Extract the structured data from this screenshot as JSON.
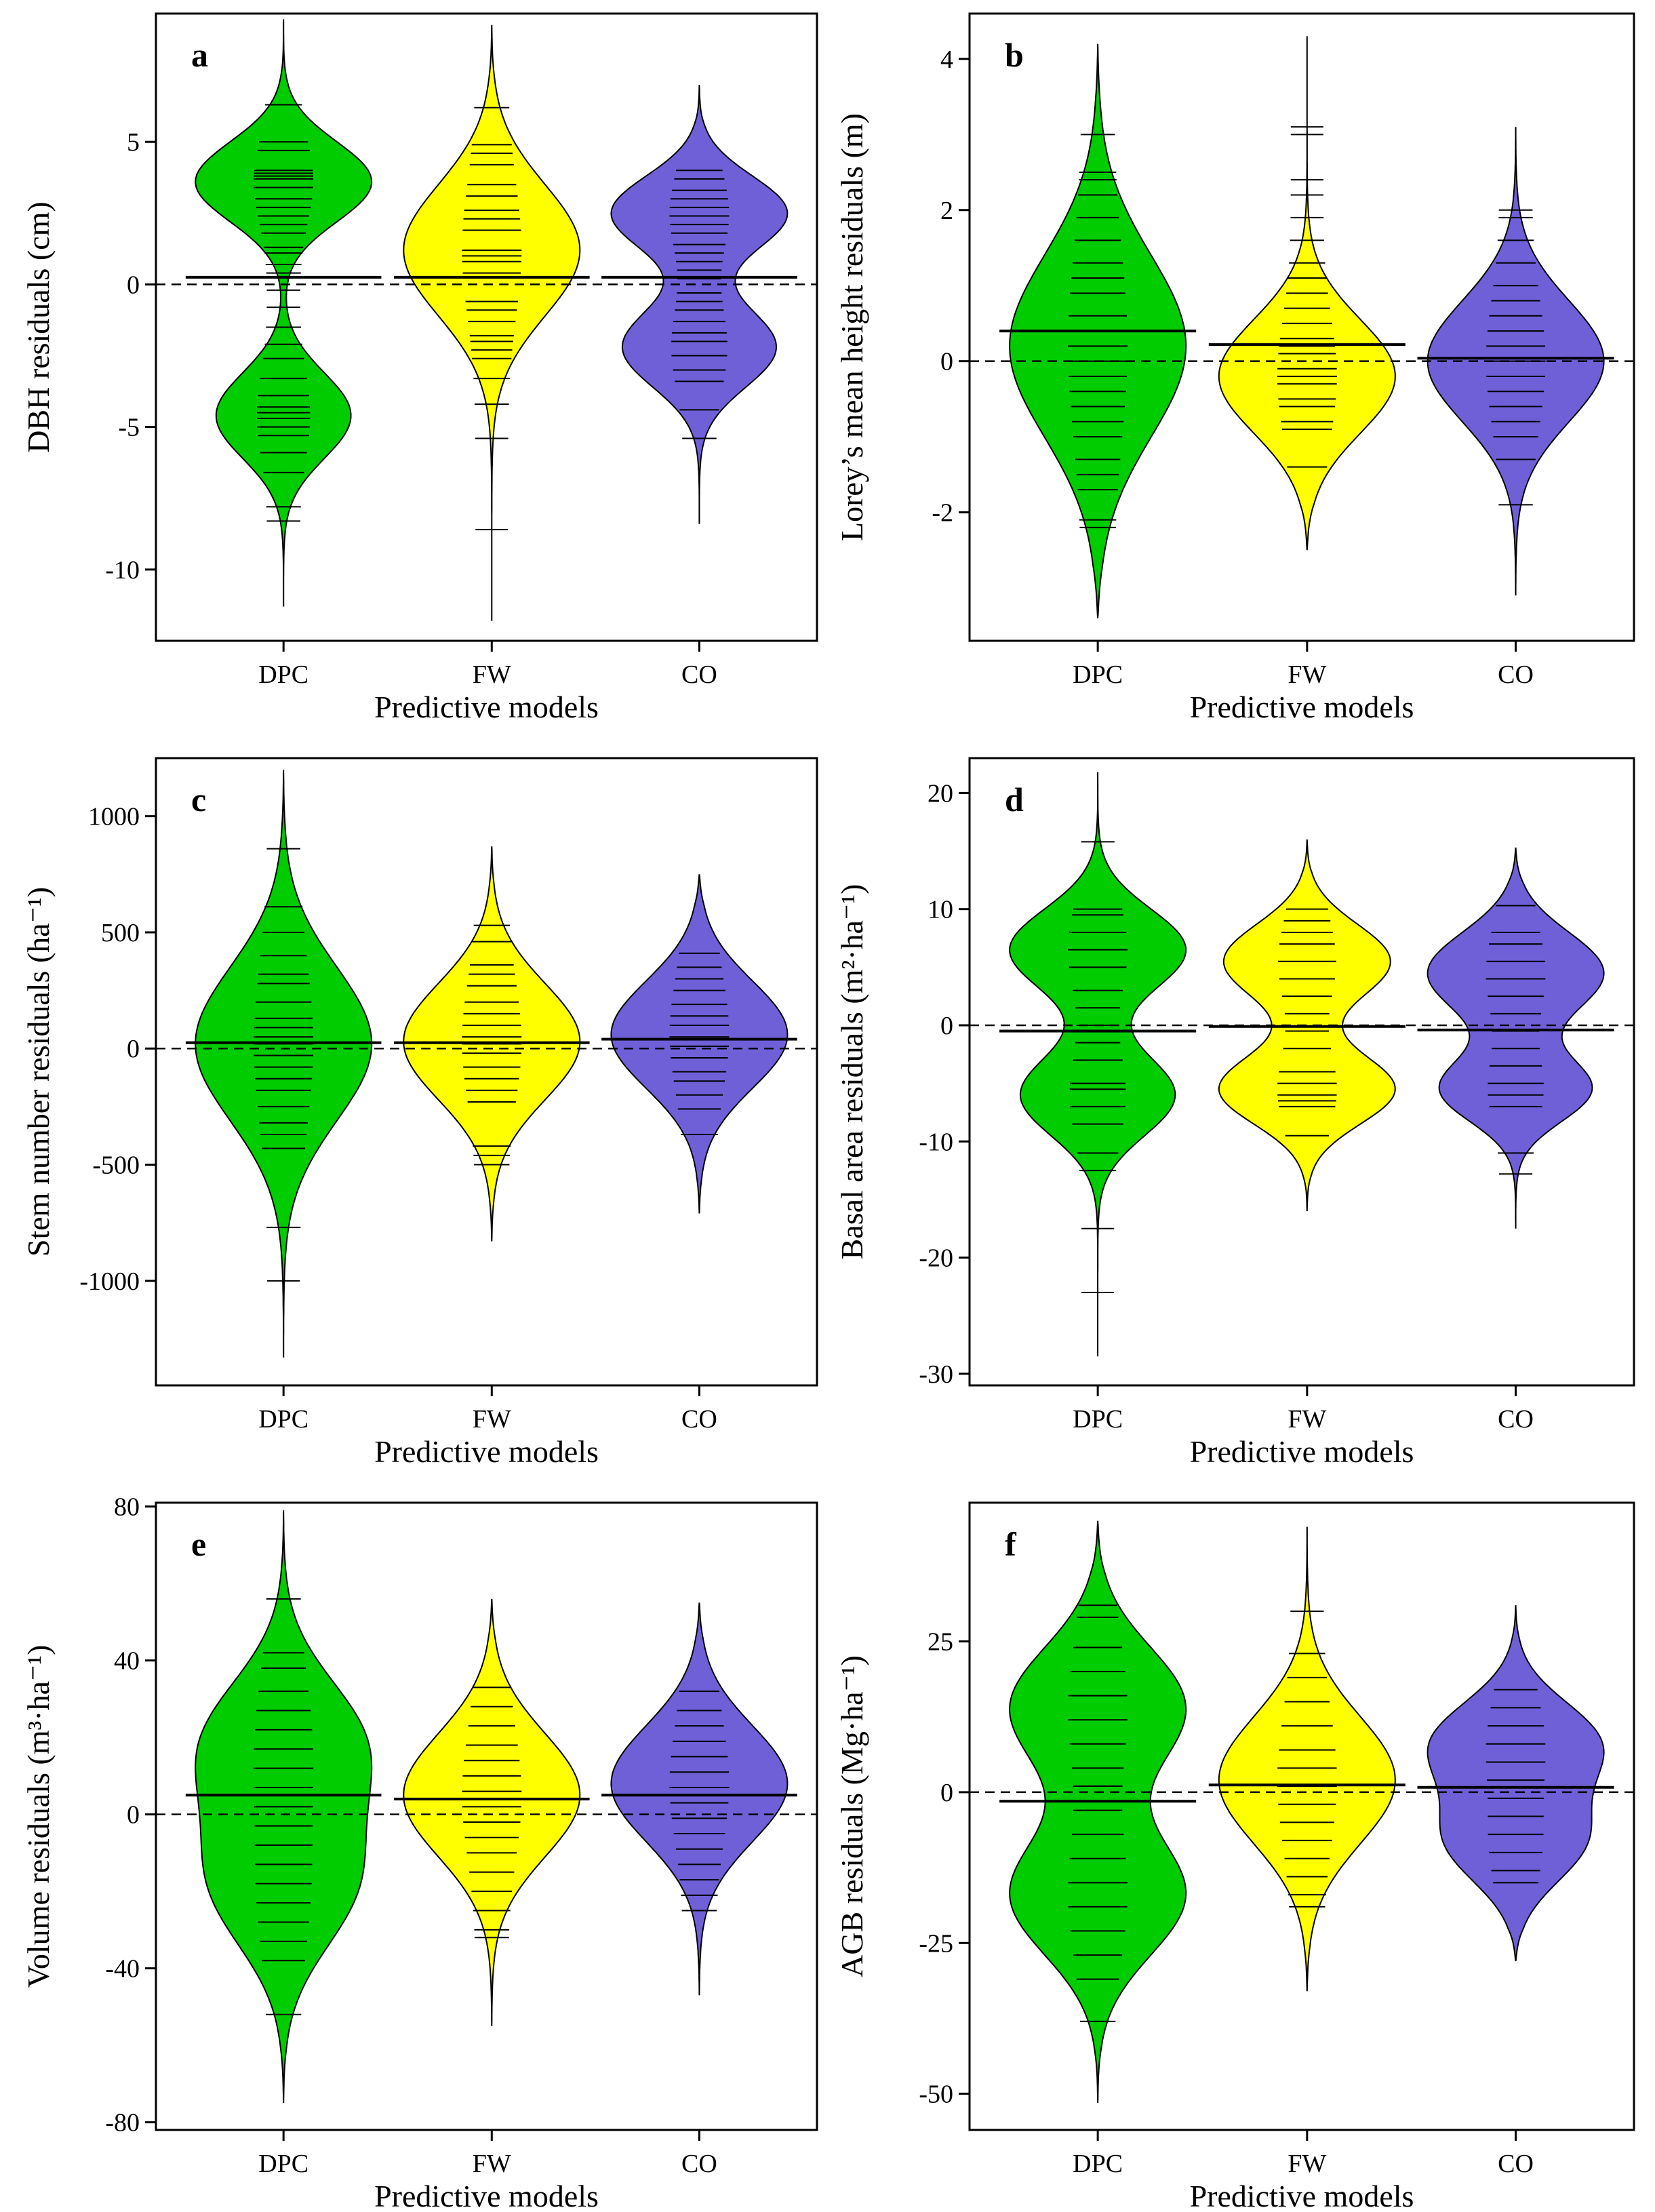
{
  "figure": {
    "x_axis_title": "Predictive models",
    "categories": [
      "DPC",
      "FW",
      "CO"
    ],
    "colors": {
      "DPC": "#00cc00",
      "FW": "#ffff00",
      "CO": "#7060d8"
    }
  },
  "chart_data": [
    {
      "type": "violin",
      "panel": "a",
      "xlabel": "Predictive models",
      "ylabel": "DBH residuals (cm)",
      "categories": [
        "DPC",
        "FW",
        "CO"
      ],
      "yticks": [
        5,
        0,
        -5,
        -10
      ],
      "ylim": [
        -12.5,
        9.5
      ],
      "reference_line": 0,
      "means": [
        0.25,
        0.25,
        0.25
      ],
      "violins": [
        {
          "name": "DPC",
          "min": -11.3,
          "max": 9.3,
          "modes": [
            {
              "c": 3.6,
              "s": 1.4,
              "w": 0.85
            },
            {
              "c": -4.6,
              "s": 1.5,
              "w": 0.65
            }
          ]
        },
        {
          "name": "FW",
          "min": -11.8,
          "max": 9.1,
          "modes": [
            {
              "c": 1.2,
              "s": 2.3,
              "w": 1.0
            }
          ]
        },
        {
          "name": "CO",
          "min": -8.4,
          "max": 7.0,
          "modes": [
            {
              "c": 2.5,
              "s": 1.3,
              "w": 0.8
            },
            {
              "c": -2.2,
              "s": 1.4,
              "w": 0.7
            }
          ]
        }
      ],
      "points": [
        [
          6.3,
          5.0,
          4.7,
          4.0,
          3.9,
          3.8,
          3.7,
          3.4,
          3.0,
          2.7,
          2.4,
          2.1,
          1.8,
          1.3,
          1.1,
          0.7,
          0.4,
          -0.2,
          -0.8,
          -1.5,
          -2.1,
          -2.6,
          -3.3,
          -3.9,
          -4.3,
          -4.5,
          -4.7,
          -5.0,
          -5.3,
          -5.9,
          -6.6,
          -7.8,
          -8.3
        ],
        [
          6.2,
          4.9,
          4.6,
          4.2,
          3.5,
          3.1,
          2.6,
          2.3,
          1.9,
          1.2,
          1.0,
          0.8,
          0.4,
          -0.6,
          -0.9,
          -1.3,
          -1.8,
          -2.0,
          -2.3,
          -2.6,
          -3.3,
          -4.2,
          -5.4,
          -8.6
        ],
        [
          4.0,
          3.7,
          3.3,
          3.0,
          2.7,
          2.4,
          2.1,
          1.8,
          1.4,
          1.1,
          0.8,
          0.5,
          0.2,
          -0.3,
          -0.6,
          -0.9,
          -1.3,
          -1.7,
          -2.0,
          -2.5,
          -3.0,
          -3.4,
          -4.4,
          -5.4
        ]
      ]
    },
    {
      "type": "violin",
      "panel": "b",
      "xlabel": "Predictive models",
      "ylabel": "Lorey’s mean height residuals (m)",
      "categories": [
        "DPC",
        "FW",
        "CO"
      ],
      "yticks": [
        4,
        2,
        0,
        -2
      ],
      "ylim": [
        -3.7,
        4.6
      ],
      "reference_line": 0,
      "means": [
        0.4,
        0.22,
        0.04
      ],
      "violins": [
        {
          "name": "DPC",
          "min": -3.4,
          "max": 4.2,
          "modes": [
            {
              "c": 0.2,
              "s": 1.2,
              "w": 0.85
            }
          ]
        },
        {
          "name": "FW",
          "min": -2.5,
          "max": 4.3,
          "modes": [
            {
              "c": -0.2,
              "s": 0.75,
              "w": 1.0
            }
          ]
        },
        {
          "name": "CO",
          "min": -3.1,
          "max": 3.1,
          "modes": [
            {
              "c": 0.0,
              "s": 0.8,
              "w": 0.88
            }
          ]
        }
      ],
      "points": [
        [
          3.0,
          2.5,
          2.4,
          2.2,
          1.9,
          1.6,
          1.3,
          1.1,
          0.9,
          0.6,
          0.4,
          0.2,
          0.0,
          -0.2,
          -0.4,
          -0.6,
          -0.8,
          -1.0,
          -1.3,
          -1.5,
          -1.7,
          -2.1,
          -2.2
        ],
        [
          3.1,
          3.0,
          2.4,
          2.2,
          1.9,
          1.6,
          1.3,
          1.1,
          0.9,
          0.7,
          0.5,
          0.3,
          0.2,
          0.1,
          -0.1,
          -0.2,
          -0.3,
          -0.5,
          -0.6,
          -0.8,
          -0.9,
          -1.4
        ],
        [
          2.0,
          1.9,
          1.6,
          1.3,
          1.0,
          0.8,
          0.6,
          0.4,
          0.2,
          0.0,
          -0.2,
          -0.4,
          -0.6,
          -0.8,
          -1.0,
          -1.3,
          -1.9
        ]
      ]
    },
    {
      "type": "violin",
      "panel": "c",
      "xlabel": "Predictive models",
      "ylabel": "Stem number residuals (ha⁻¹)",
      "categories": [
        "DPC",
        "FW",
        "CO"
      ],
      "yticks": [
        1000,
        500,
        0,
        -500,
        -1000
      ],
      "ylim": [
        -1450,
        1250
      ],
      "reference_line": 0,
      "means": [
        25,
        25,
        40
      ],
      "violins": [
        {
          "name": "DPC",
          "min": -1330,
          "max": 1200,
          "modes": [
            {
              "c": 20,
              "s": 330,
              "w": 0.8
            }
          ]
        },
        {
          "name": "FW",
          "min": -830,
          "max": 870,
          "modes": [
            {
              "c": 30,
              "s": 250,
              "w": 1.0
            }
          ]
        },
        {
          "name": "CO",
          "min": -710,
          "max": 750,
          "modes": [
            {
              "c": 60,
              "s": 230,
              "w": 1.0
            }
          ]
        }
      ],
      "points": [
        [
          860,
          610,
          500,
          400,
          320,
          280,
          200,
          130,
          90,
          50,
          20,
          -30,
          -80,
          -130,
          -180,
          -250,
          -320,
          -370,
          -430,
          -770,
          -1000
        ],
        [
          530,
          460,
          360,
          320,
          270,
          200,
          150,
          100,
          50,
          20,
          -20,
          -80,
          -130,
          -180,
          -230,
          -420,
          -460,
          -500
        ],
        [
          410,
          350,
          300,
          250,
          190,
          140,
          100,
          50,
          10,
          -40,
          -100,
          -140,
          -200,
          -260,
          -370
        ]
      ]
    },
    {
      "type": "violin",
      "panel": "d",
      "xlabel": "Predictive models",
      "ylabel": "Basal area residuals (m²·ha⁻¹)",
      "categories": [
        "DPC",
        "FW",
        "CO"
      ],
      "yticks": [
        20,
        10,
        0,
        -10,
        -20,
        -30
      ],
      "ylim": [
        -31,
        23
      ],
      "reference_line": 0,
      "means": [
        -0.5,
        -0.1,
        -0.4
      ],
      "violins": [
        {
          "name": "DPC",
          "min": -28.5,
          "max": 21.8,
          "modes": [
            {
              "c": 6.5,
              "s": 3.5,
              "w": 0.82
            },
            {
              "c": -6.0,
              "s": 3.5,
              "w": 0.72
            }
          ]
        },
        {
          "name": "FW",
          "min": -16.0,
          "max": 16.0,
          "modes": [
            {
              "c": 5.5,
              "s": 3.2,
              "w": 0.9
            },
            {
              "c": -5.5,
              "s": 3.0,
              "w": 0.95
            }
          ]
        },
        {
          "name": "CO",
          "min": -17.5,
          "max": 15.3,
          "modes": [
            {
              "c": 4.5,
              "s": 3.5,
              "w": 0.88
            },
            {
              "c": -5.5,
              "s": 2.8,
              "w": 0.75
            }
          ]
        }
      ],
      "points": [
        [
          15.8,
          10.0,
          9.5,
          8.0,
          6.5,
          5.0,
          3.0,
          1.5,
          0.0,
          -1.5,
          -3.0,
          -5.0,
          -5.5,
          -7.0,
          -8.5,
          -11.0,
          -12.5,
          -17.5,
          -23.0
        ],
        [
          10.0,
          9.0,
          8.0,
          7.0,
          5.5,
          4.0,
          2.5,
          1.0,
          -0.5,
          -2.0,
          -4.0,
          -5.0,
          -6.0,
          -6.5,
          -7.0,
          -9.5
        ],
        [
          10.3,
          8.0,
          7.0,
          5.5,
          4.0,
          2.5,
          1.0,
          -0.5,
          -2.0,
          -3.5,
          -5.0,
          -6.0,
          -7.0,
          -11.0,
          -12.8
        ]
      ]
    },
    {
      "type": "violin",
      "panel": "e",
      "xlabel": "Predictive models",
      "ylabel": "Volume residuals (m³·ha⁻¹)",
      "categories": [
        "DPC",
        "FW",
        "CO"
      ],
      "yticks": [
        80,
        40,
        0,
        -40,
        -80
      ],
      "ylim": [
        -82,
        81
      ],
      "reference_line": 0,
      "means": [
        5,
        4,
        5
      ],
      "violins": [
        {
          "name": "DPC",
          "min": -75,
          "max": 79,
          "modes": [
            {
              "c": 18,
              "s": 17,
              "w": 0.82
            },
            {
              "c": -18,
              "s": 17,
              "w": 0.72
            }
          ]
        },
        {
          "name": "FW",
          "min": -55,
          "max": 56,
          "modes": [
            {
              "c": 5,
              "s": 16,
              "w": 1.0
            }
          ]
        },
        {
          "name": "CO",
          "min": -47,
          "max": 55,
          "modes": [
            {
              "c": 8,
              "s": 15,
              "w": 0.98
            }
          ]
        }
      ],
      "points": [
        [
          56,
          42,
          38,
          32,
          27,
          22,
          17,
          12,
          7,
          2,
          -3,
          -8,
          -13,
          -18,
          -23,
          -28,
          -33,
          -38,
          -52
        ],
        [
          33,
          28,
          23,
          18,
          14,
          10,
          6,
          2,
          -2,
          -6,
          -10,
          -15,
          -20,
          -25,
          -30,
          -32
        ],
        [
          32,
          27,
          23,
          19,
          15,
          11,
          7,
          3,
          -1,
          -5,
          -9,
          -13,
          -17,
          -21,
          -25
        ]
      ]
    },
    {
      "type": "violin",
      "panel": "f",
      "xlabel": "Predictive models",
      "ylabel": "AGB residuals (Mg·ha⁻¹)",
      "categories": [
        "DPC",
        "FW",
        "CO"
      ],
      "yticks": [
        25,
        0,
        -25,
        -50
      ],
      "ylim": [
        -56,
        48
      ],
      "reference_line": 0,
      "means": [
        -1.5,
        1.2,
        0.8
      ],
      "violins": [
        {
          "name": "DPC",
          "min": -51.5,
          "max": 45,
          "modes": [
            {
              "c": 14,
              "s": 10,
              "w": 0.7
            },
            {
              "c": -17,
              "s": 10,
              "w": 0.7
            }
          ]
        },
        {
          "name": "FW",
          "min": -33,
          "max": 44,
          "modes": [
            {
              "c": 2,
              "s": 10.5,
              "w": 1.0
            }
          ]
        },
        {
          "name": "CO",
          "min": -28,
          "max": 31,
          "modes": [
            {
              "c": 8,
              "s": 7,
              "w": 0.88
            },
            {
              "c": -8,
              "s": 7,
              "w": 0.72
            }
          ]
        }
      ],
      "points": [
        [
          31,
          29,
          24,
          20,
          16,
          12,
          8,
          4,
          1,
          -3,
          -7,
          -11,
          -15,
          -19,
          -23,
          -27,
          -31,
          -38
        ],
        [
          30,
          23,
          19,
          15,
          11,
          7,
          4,
          1,
          -2,
          -5,
          -8,
          -11,
          -14,
          -17,
          -19
        ],
        [
          17,
          14,
          11,
          8,
          5,
          2,
          -1,
          -4,
          -7,
          -10,
          -13,
          -15
        ]
      ]
    }
  ]
}
